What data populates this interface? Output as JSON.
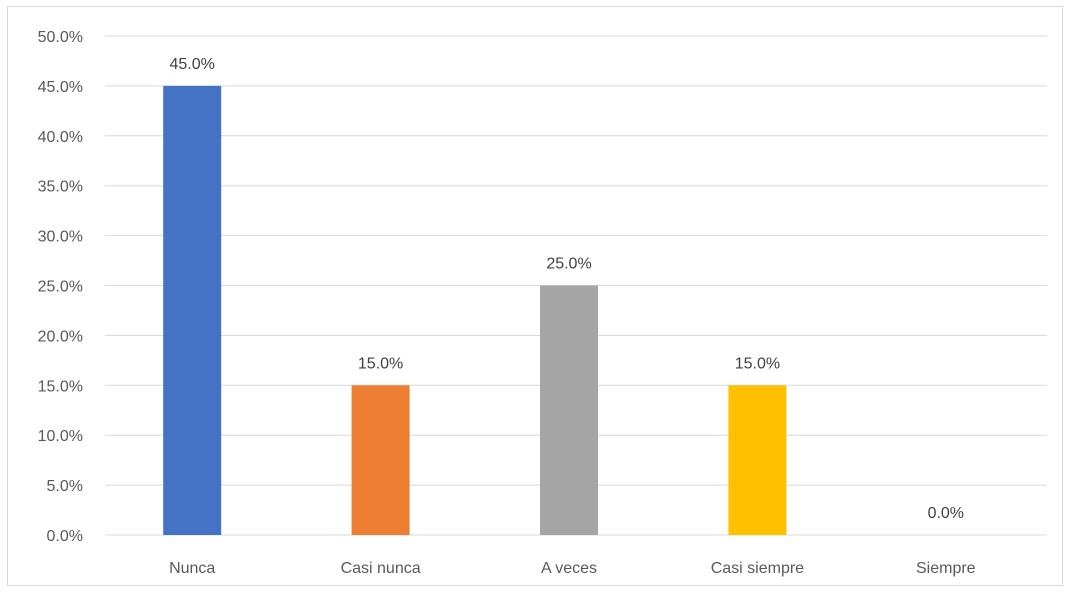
{
  "chart_data": {
    "type": "bar",
    "categories": [
      "Nunca",
      "Casi nunca",
      "A veces",
      "Casi siempre",
      "Siempre"
    ],
    "values": [
      45.0,
      15.0,
      25.0,
      15.0,
      0.0
    ],
    "data_labels": [
      "45.0%",
      "15.0%",
      "25.0%",
      "15.0%",
      "0.0%"
    ],
    "colors": [
      "#4472c4",
      "#ed7d31",
      "#a5a5a5",
      "#ffc000",
      "#5b9bd5"
    ],
    "ylim": [
      0,
      50
    ],
    "y_ticks": [
      0,
      5,
      10,
      15,
      20,
      25,
      30,
      35,
      40,
      45,
      50
    ],
    "y_tick_labels": [
      "0.0%",
      "5.0%",
      "10.0%",
      "15.0%",
      "20.0%",
      "25.0%",
      "30.0%",
      "35.0%",
      "40.0%",
      "45.0%",
      "50.0%"
    ],
    "grid": true,
    "legend": false,
    "title": "",
    "xlabel": "",
    "ylabel": ""
  }
}
